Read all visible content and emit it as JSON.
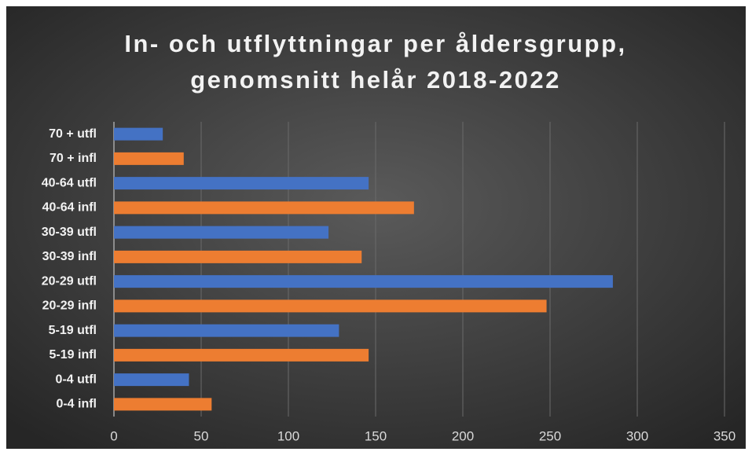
{
  "chart_data": {
    "type": "barh",
    "title": [
      "In- och utflyttningar per åldersgrupp,",
      "genomsnitt helår 2018-2022"
    ],
    "categories": [
      "70 + utfl",
      "70 + infl",
      "40-64 utfl",
      "40-64 infl",
      "30-39 utfl",
      "30-39 infl",
      "20-29 utfl",
      "20-29 infl",
      "5-19 utfl",
      "5-19 infl",
      "0-4 utfl",
      "0-4 infl"
    ],
    "values": [
      28,
      40,
      146,
      172,
      123,
      142,
      286,
      248,
      129,
      146,
      43,
      56
    ],
    "colors": [
      "#4472c4",
      "#ed7d31",
      "#4472c4",
      "#ed7d31",
      "#4472c4",
      "#ed7d31",
      "#4472c4",
      "#ed7d31",
      "#4472c4",
      "#ed7d31",
      "#4472c4",
      "#ed7d31"
    ],
    "xlim": [
      0,
      350
    ],
    "xticks": [
      0,
      50,
      100,
      150,
      200,
      250,
      300,
      350
    ],
    "grid": true
  }
}
